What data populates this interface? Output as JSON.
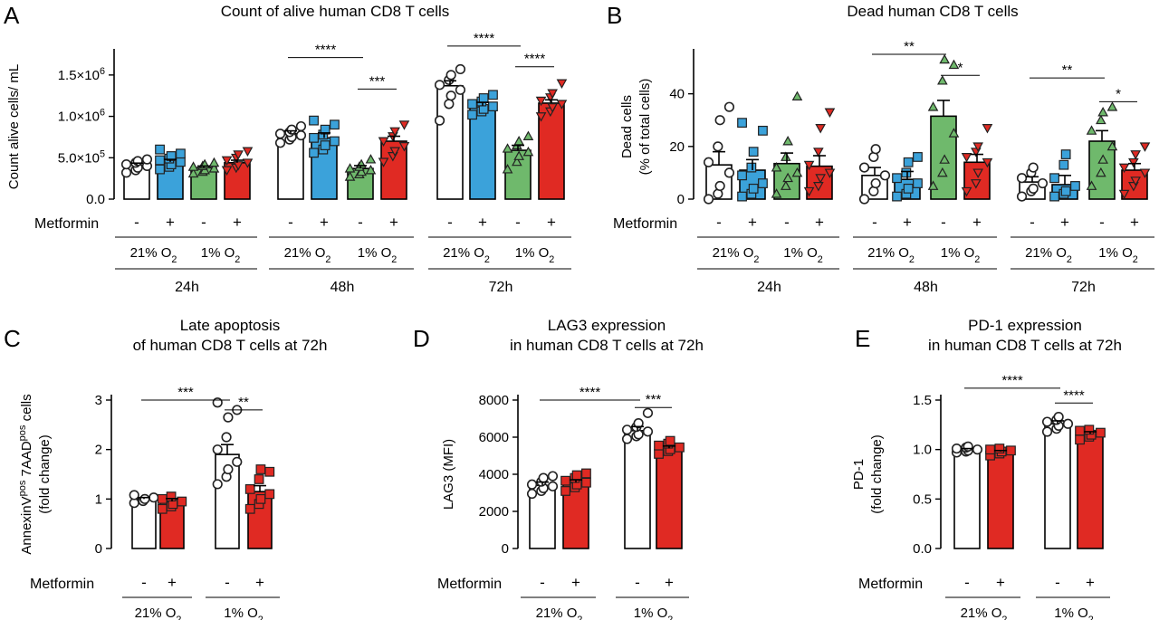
{
  "figure_panels": [
    "A",
    "B",
    "C",
    "D",
    "E"
  ],
  "metformin_label": "Metformin",
  "chart_data": [
    {
      "panel": "A",
      "type": "bar",
      "title": "Count of alive human CD8 T cells",
      "ylabel": "Count alive cells/ mL",
      "ylim": [
        0,
        1750000
      ],
      "yticks": [
        {
          "value": 0,
          "label": "0.0"
        },
        {
          "value": 500000,
          "label": "5.0×10",
          "sup": "5"
        },
        {
          "value": 1000000,
          "label": "1.0×10",
          "sup": "6"
        },
        {
          "value": 1500000,
          "label": "1.5×10",
          "sup": "6"
        }
      ],
      "metformin": [
        "-",
        "+",
        "-",
        "+",
        "-",
        "+",
        "-",
        "+",
        "-",
        "+",
        "-",
        "+"
      ],
      "oxygen_groups": [
        {
          "label": "21% O",
          "sub": "2"
        },
        {
          "label": "1% O",
          "sub": "2"
        },
        {
          "label": "21% O",
          "sub": "2"
        },
        {
          "label": "1% O",
          "sub": "2"
        },
        {
          "label": "21% O",
          "sub": "2"
        },
        {
          "label": "1% O",
          "sub": "2"
        }
      ],
      "time_groups": [
        "24h",
        "48h",
        "72h"
      ],
      "series": [
        {
          "condition": "21% O2, -",
          "color": "#ffffff",
          "marker": "circle",
          "values": [
            410000,
            790000,
            1370000
          ],
          "sem": [
            25000,
            35000,
            60000
          ]
        },
        {
          "condition": "21% O2, +",
          "color": "#3ba2da",
          "marker": "square",
          "values": [
            450000,
            740000,
            1130000
          ],
          "sem": [
            30000,
            60000,
            40000
          ]
        },
        {
          "condition": "1% O2, -",
          "color": "#6fb96c",
          "marker": "triangle",
          "values": [
            380000,
            370000,
            590000
          ],
          "sem": [
            20000,
            35000,
            60000
          ]
        },
        {
          "condition": "1% O2, +",
          "color": "#e02a23",
          "marker": "triangle-down",
          "values": [
            440000,
            700000,
            1160000
          ],
          "sem": [
            30000,
            60000,
            40000
          ]
        }
      ],
      "points": [
        [
          320000,
          350000,
          380000,
          400000,
          420000,
          440000,
          460000,
          480000
        ],
        [
          360000,
          390000,
          420000,
          450000,
          470000,
          490000,
          520000,
          550000,
          600000
        ],
        [
          310000,
          330000,
          350000,
          370000,
          390000,
          400000,
          420000,
          440000
        ],
        [
          350000,
          380000,
          410000,
          440000,
          470000,
          500000,
          540000,
          580000
        ],
        [
          680000,
          720000,
          750000,
          770000,
          790000,
          810000,
          840000,
          880000
        ],
        [
          560000,
          600000,
          650000,
          700000,
          740000,
          780000,
          840000,
          900000,
          950000
        ],
        [
          270000,
          300000,
          330000,
          350000,
          370000,
          390000,
          420000,
          480000
        ],
        [
          450000,
          520000,
          580000,
          640000,
          700000,
          760000,
          820000,
          900000
        ],
        [
          950000,
          1150000,
          1250000,
          1320000,
          1380000,
          1440000,
          1500000,
          1570000
        ],
        [
          1020000,
          1060000,
          1090000,
          1120000,
          1150000,
          1180000,
          1220000,
          1260000
        ],
        [
          360000,
          450000,
          520000,
          570000,
          610000,
          650000,
          700000,
          760000
        ],
        [
          1000000,
          1060000,
          1110000,
          1150000,
          1190000,
          1230000,
          1280000,
          1400000
        ]
      ],
      "significance": [
        {
          "group": 1,
          "from": 0,
          "to": 2,
          "label": "****",
          "level": 1710000
        },
        {
          "group": 1,
          "from": 2,
          "to": 3,
          "label": "***",
          "level": 1330000
        },
        {
          "group": 2,
          "from": 0,
          "to": 2,
          "label": "****",
          "level": 1850000
        },
        {
          "group": 2,
          "from": 2,
          "to": 3,
          "label": "****",
          "level": 1600000
        }
      ]
    },
    {
      "panel": "B",
      "type": "bar",
      "title": "Dead human CD8 T cells",
      "ylabel": "Dead cells",
      "ylabel2": "(% of total cells)",
      "ylim": [
        0,
        55
      ],
      "yticks": [
        {
          "value": 0,
          "label": "0"
        },
        {
          "value": 20,
          "label": "20"
        },
        {
          "value": 40,
          "label": "40"
        }
      ],
      "metformin": [
        "-",
        "+",
        "-",
        "+",
        "-",
        "+",
        "-",
        "+",
        "-",
        "+",
        "-",
        "+"
      ],
      "oxygen_groups": [
        {
          "label": "21% O",
          "sub": "2"
        },
        {
          "label": "1% O",
          "sub": "2"
        },
        {
          "label": "21% O",
          "sub": "2"
        },
        {
          "label": "1% O",
          "sub": "2"
        },
        {
          "label": "21% O",
          "sub": "2"
        },
        {
          "label": "1% O",
          "sub": "2"
        }
      ],
      "time_groups": [
        "24h",
        "48h",
        "72h"
      ],
      "series": [
        {
          "condition": "21% O2, -",
          "color": "#ffffff",
          "marker": "circle",
          "values": [
            13,
            9,
            6.5
          ],
          "sem": [
            5,
            3,
            2
          ]
        },
        {
          "condition": "21% O2, +",
          "color": "#3ba2da",
          "marker": "square",
          "values": [
            11,
            7.5,
            5.5
          ],
          "sem": [
            4,
            3,
            3.5
          ]
        },
        {
          "condition": "1% O2, -",
          "color": "#6fb96c",
          "marker": "triangle",
          "values": [
            13.5,
            31.5,
            22
          ],
          "sem": [
            4,
            6,
            4
          ]
        },
        {
          "condition": "1% O2, +",
          "color": "#e02a23",
          "marker": "triangle-down",
          "values": [
            12.5,
            14,
            11
          ],
          "sem": [
            4,
            3,
            2.5
          ]
        }
      ],
      "points": [
        [
          0,
          2,
          5,
          10,
          14,
          20,
          30,
          35
        ],
        [
          1,
          2,
          4,
          6,
          9,
          12,
          18,
          26,
          29
        ],
        [
          2,
          5,
          8,
          10,
          12,
          16,
          22,
          39
        ],
        [
          3,
          5,
          8,
          10,
          13,
          18,
          27,
          33
        ],
        [
          0,
          3,
          6,
          9,
          12,
          16,
          19
        ],
        [
          1,
          2,
          4,
          6,
          8,
          10,
          14,
          16
        ],
        [
          5,
          10,
          15,
          25,
          35,
          45,
          53,
          51
        ],
        [
          3,
          6,
          10,
          14,
          16,
          18,
          20,
          27
        ],
        [
          1,
          3,
          4,
          6,
          8,
          10,
          12
        ],
        [
          1,
          2,
          3,
          5,
          8,
          13,
          17
        ],
        [
          5,
          10,
          15,
          20,
          26,
          30,
          33,
          35
        ],
        [
          2,
          5,
          7,
          10,
          12,
          14,
          17,
          20
        ]
      ],
      "significance": [
        {
          "group": 1,
          "from": 0,
          "to": 2,
          "label": "**",
          "level": 55
        },
        {
          "group": 1,
          "from": 2,
          "to": 3,
          "label": "*",
          "level": 47
        },
        {
          "group": 2,
          "from": 0,
          "to": 2,
          "label": "**",
          "level": 46
        },
        {
          "group": 2,
          "from": 2,
          "to": 3,
          "label": "*",
          "level": 37
        }
      ]
    },
    {
      "panel": "C",
      "type": "bar",
      "title": "Late apoptosis",
      "title2": "of human CD8 T cells at 72h",
      "ylabel": "AnnexinV",
      "ylabel_sup1": "pos",
      "ylabel_mid": " 7AAD",
      "ylabel_sup2": "pos",
      "ylabel_end": " cells",
      "ylabel2": "(fold change)",
      "ylim": [
        0,
        3
      ],
      "yticks": [
        {
          "value": 0,
          "label": "0"
        },
        {
          "value": 1,
          "label": "1"
        },
        {
          "value": 2,
          "label": "2"
        },
        {
          "value": 3,
          "label": "3"
        }
      ],
      "metformin": [
        "-",
        "+",
        "-",
        "+"
      ],
      "oxygen_groups": [
        {
          "label": "21% O",
          "sub": "2"
        },
        {
          "label": "1% O",
          "sub": "2"
        }
      ],
      "values": [
        1.0,
        0.95,
        1.9,
        1.15
      ],
      "sem": [
        0.03,
        0.06,
        0.2,
        0.12
      ],
      "colors": [
        "#ffffff",
        "#e02a23",
        "#ffffff",
        "#e02a23"
      ],
      "markers": [
        "circle",
        "square",
        "circle",
        "square"
      ],
      "points": [
        [
          0.92,
          0.96,
          1.0,
          1.03,
          1.08
        ],
        [
          0.8,
          0.85,
          0.9,
          0.95,
          1.0,
          1.05
        ],
        [
          1.3,
          1.45,
          1.6,
          1.75,
          2.0,
          2.25,
          2.65,
          2.8,
          2.95
        ],
        [
          0.8,
          0.9,
          1.0,
          1.1,
          1.2,
          1.4,
          1.6,
          1.55
        ]
      ],
      "significance": [
        {
          "from": 0,
          "to": 2,
          "label": "***",
          "level": 3.0
        },
        {
          "from": 2,
          "to": 3,
          "label": "**",
          "level": 2.8
        }
      ]
    },
    {
      "panel": "D",
      "type": "bar",
      "title": "LAG3 expression",
      "title2": "in human CD8 T cells at 72h",
      "ylabel": "LAG3 (MFI)",
      "ylim": [
        0,
        8000
      ],
      "yticks": [
        {
          "value": 0,
          "label": "0"
        },
        {
          "value": 2000,
          "label": "2000"
        },
        {
          "value": 4000,
          "label": "4000"
        },
        {
          "value": 6000,
          "label": "6000"
        },
        {
          "value": 8000,
          "label": "8000"
        }
      ],
      "metformin": [
        "-",
        "+",
        "-",
        "+"
      ],
      "oxygen_groups": [
        {
          "label": "21% O",
          "sub": "2"
        },
        {
          "label": "1% O",
          "sub": "2"
        }
      ],
      "values": [
        3400,
        3550,
        6350,
        5400
      ],
      "sem": [
        180,
        150,
        220,
        120
      ],
      "colors": [
        "#ffffff",
        "#e02a23",
        "#ffffff",
        "#e02a23"
      ],
      "markers": [
        "circle",
        "square",
        "circle",
        "square"
      ],
      "points": [
        [
          2950,
          3100,
          3250,
          3350,
          3450,
          3600,
          3800,
          3900
        ],
        [
          3100,
          3300,
          3450,
          3550,
          3650,
          3800,
          3950,
          4050
        ],
        [
          5900,
          6050,
          6150,
          6300,
          6400,
          6550,
          6750,
          7300
        ],
        [
          5100,
          5250,
          5350,
          5450,
          5550,
          5650,
          5800
        ]
      ],
      "significance": [
        {
          "from": 0,
          "to": 2,
          "label": "****",
          "level": 8000
        },
        {
          "from": 2,
          "to": 3,
          "label": "***",
          "level": 7600
        }
      ]
    },
    {
      "panel": "E",
      "type": "bar",
      "title": "PD-1 expression",
      "title2": "in human CD8 T cells at 72h",
      "ylabel": "PD-1",
      "ylabel2": "(fold change)",
      "ylim": [
        0,
        1.5
      ],
      "yticks": [
        {
          "value": 0,
          "label": "0.0"
        },
        {
          "value": 0.5,
          "label": "0.5"
        },
        {
          "value": 1.0,
          "label": "1.0"
        },
        {
          "value": 1.5,
          "label": "1.5"
        }
      ],
      "metformin": [
        "-",
        "+",
        "-",
        "+"
      ],
      "oxygen_groups": [
        {
          "label": "21% O",
          "sub": "2"
        },
        {
          "label": "1% O",
          "sub": "2"
        }
      ],
      "values": [
        1.0,
        0.98,
        1.26,
        1.16
      ],
      "sem": [
        0.01,
        0.01,
        0.03,
        0.02
      ],
      "colors": [
        "#ffffff",
        "#e02a23",
        "#ffffff",
        "#e02a23"
      ],
      "markers": [
        "circle",
        "square",
        "circle",
        "square"
      ],
      "points": [
        [
          0.97,
          0.98,
          0.99,
          1.0,
          1.01,
          1.02,
          1.03
        ],
        [
          0.94,
          0.96,
          0.98,
          0.99,
          1.0,
          1.01
        ],
        [
          1.18,
          1.21,
          1.24,
          1.26,
          1.28,
          1.3,
          1.33
        ],
        [
          1.1,
          1.13,
          1.15,
          1.17,
          1.19,
          1.2
        ]
      ],
      "significance": [
        {
          "from": 0,
          "to": 2,
          "label": "****",
          "level": 1.62
        },
        {
          "from": 2,
          "to": 3,
          "label": "****",
          "level": 1.47
        }
      ]
    }
  ]
}
